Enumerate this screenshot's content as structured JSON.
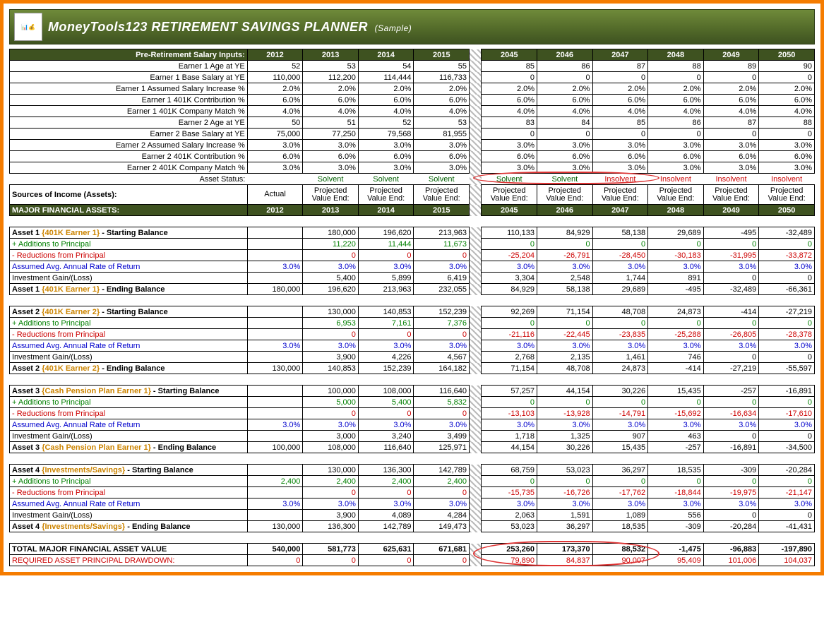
{
  "title_main": "MoneyTools123 RETIREMENT SAVINGS PLANNER",
  "title_sample": "(Sample)",
  "logo_text": "📊💰",
  "years_left": [
    "2012",
    "2013",
    "2014",
    "2015"
  ],
  "years_right": [
    "2045",
    "2046",
    "2047",
    "2048",
    "2049",
    "2050"
  ],
  "section1_header": "Pre-Retirement Salary Inputs:",
  "inputs": [
    {
      "label": "Earner 1 Age at YE",
      "l": [
        "52",
        "53",
        "54",
        "55"
      ],
      "r": [
        "85",
        "86",
        "87",
        "88",
        "89",
        "90"
      ]
    },
    {
      "label": "Earner 1 Base Salary at YE",
      "l": [
        "110,000",
        "112,200",
        "114,444",
        "116,733"
      ],
      "r": [
        "0",
        "0",
        "0",
        "0",
        "0",
        "0"
      ]
    },
    {
      "label": "Earner 1 Assumed Salary Increase %",
      "l": [
        "2.0%",
        "2.0%",
        "2.0%",
        "2.0%"
      ],
      "r": [
        "2.0%",
        "2.0%",
        "2.0%",
        "2.0%",
        "2.0%",
        "2.0%"
      ]
    },
    {
      "label": "Earner 1 401K Contribution %",
      "l": [
        "6.0%",
        "6.0%",
        "6.0%",
        "6.0%"
      ],
      "r": [
        "6.0%",
        "6.0%",
        "6.0%",
        "6.0%",
        "6.0%",
        "6.0%"
      ]
    },
    {
      "label": "Earner 1 401K Company Match %",
      "l": [
        "4.0%",
        "4.0%",
        "4.0%",
        "4.0%"
      ],
      "r": [
        "4.0%",
        "4.0%",
        "4.0%",
        "4.0%",
        "4.0%",
        "4.0%"
      ]
    },
    {
      "label": "Earner 2 Age at YE",
      "l": [
        "50",
        "51",
        "52",
        "53"
      ],
      "r": [
        "83",
        "84",
        "85",
        "86",
        "87",
        "88"
      ]
    },
    {
      "label": "Earner 2 Base Salary at YE",
      "l": [
        "75,000",
        "77,250",
        "79,568",
        "81,955"
      ],
      "r": [
        "0",
        "0",
        "0",
        "0",
        "0",
        "0"
      ]
    },
    {
      "label": "Earner 2 Assumed Salary Increase %",
      "l": [
        "3.0%",
        "3.0%",
        "3.0%",
        "3.0%"
      ],
      "r": [
        "3.0%",
        "3.0%",
        "3.0%",
        "3.0%",
        "3.0%",
        "3.0%"
      ]
    },
    {
      "label": "Earner 2 401K Contribution %",
      "l": [
        "6.0%",
        "6.0%",
        "6.0%",
        "6.0%"
      ],
      "r": [
        "6.0%",
        "6.0%",
        "6.0%",
        "6.0%",
        "6.0%",
        "6.0%"
      ]
    },
    {
      "label": "Earner 2 401K Company Match %",
      "l": [
        "3.0%",
        "3.0%",
        "3.0%",
        "3.0%"
      ],
      "r": [
        "3.0%",
        "3.0%",
        "3.0%",
        "3.0%",
        "3.0%",
        "3.0%"
      ]
    }
  ],
  "asset_status_label": "Asset Status:",
  "status_l": [
    "",
    "Solvent",
    "Solvent",
    "Solvent"
  ],
  "status_r": [
    "Solvent",
    "Solvent",
    "Insolvent",
    "Insolvent",
    "Insolvent",
    "Insolvent"
  ],
  "sources_label": "Sources of Income (Assets):",
  "actual_label": "Actual",
  "proj_label": "Projected Value End:",
  "major_assets_label": "MAJOR FINANCIAL ASSETS:",
  "assets": [
    {
      "name": "{401K Earner 1}",
      "start_label": "Asset 1",
      "end_label": "Asset 1",
      "rows": [
        {
          "t": "start",
          "l": [
            "",
            "180,000",
            "196,620",
            "213,963"
          ],
          "r": [
            "110,133",
            "84,929",
            "58,138",
            "29,689",
            "-495",
            "-32,489"
          ]
        },
        {
          "t": "add",
          "l": [
            "",
            "11,220",
            "11,444",
            "11,673"
          ],
          "r": [
            "0",
            "0",
            "0",
            "0",
            "0",
            "0"
          ]
        },
        {
          "t": "red",
          "l": [
            "",
            "0",
            "0",
            "0"
          ],
          "r": [
            "-25,204",
            "-26,791",
            "-28,450",
            "-30,183",
            "-31,995",
            "-33,872"
          ]
        },
        {
          "t": "ror",
          "l": [
            "3.0%",
            "3.0%",
            "3.0%",
            "3.0%"
          ],
          "r": [
            "3.0%",
            "3.0%",
            "3.0%",
            "3.0%",
            "3.0%",
            "3.0%"
          ]
        },
        {
          "t": "gain",
          "l": [
            "",
            "5,400",
            "5,899",
            "6,419"
          ],
          "r": [
            "3,304",
            "2,548",
            "1,744",
            "891",
            "0",
            "0"
          ]
        },
        {
          "t": "end",
          "l": [
            "180,000",
            "196,620",
            "213,963",
            "232,055"
          ],
          "r": [
            "84,929",
            "58,138",
            "29,689",
            "-495",
            "-32,489",
            "-66,361"
          ]
        }
      ]
    },
    {
      "name": "{401K Earner 2}",
      "start_label": "Asset 2",
      "end_label": "Asset 2",
      "rows": [
        {
          "t": "start",
          "l": [
            "",
            "130,000",
            "140,853",
            "152,239"
          ],
          "r": [
            "92,269",
            "71,154",
            "48,708",
            "24,873",
            "-414",
            "-27,219"
          ]
        },
        {
          "t": "add",
          "l": [
            "",
            "6,953",
            "7,161",
            "7,376"
          ],
          "r": [
            "0",
            "0",
            "0",
            "0",
            "0",
            "0"
          ]
        },
        {
          "t": "red",
          "l": [
            "",
            "0",
            "0",
            "0"
          ],
          "r": [
            "-21,116",
            "-22,445",
            "-23,835",
            "-25,288",
            "-26,805",
            "-28,378"
          ]
        },
        {
          "t": "ror",
          "l": [
            "3.0%",
            "3.0%",
            "3.0%",
            "3.0%"
          ],
          "r": [
            "3.0%",
            "3.0%",
            "3.0%",
            "3.0%",
            "3.0%",
            "3.0%"
          ]
        },
        {
          "t": "gain",
          "l": [
            "",
            "3,900",
            "4,226",
            "4,567"
          ],
          "r": [
            "2,768",
            "2,135",
            "1,461",
            "746",
            "0",
            "0"
          ]
        },
        {
          "t": "end",
          "l": [
            "130,000",
            "140,853",
            "152,239",
            "164,182"
          ],
          "r": [
            "71,154",
            "48,708",
            "24,873",
            "-414",
            "-27,219",
            "-55,597"
          ]
        }
      ]
    },
    {
      "name": "{Cash Pension Plan Earner 1}",
      "start_label": "Asset 3",
      "end_label": "Asset 3",
      "rows": [
        {
          "t": "start",
          "l": [
            "",
            "100,000",
            "108,000",
            "116,640"
          ],
          "r": [
            "57,257",
            "44,154",
            "30,226",
            "15,435",
            "-257",
            "-16,891"
          ]
        },
        {
          "t": "add",
          "l": [
            "",
            "5,000",
            "5,400",
            "5,832"
          ],
          "r": [
            "0",
            "0",
            "0",
            "0",
            "0",
            "0"
          ]
        },
        {
          "t": "red",
          "l": [
            "",
            "0",
            "0",
            "0"
          ],
          "r": [
            "-13,103",
            "-13,928",
            "-14,791",
            "-15,692",
            "-16,634",
            "-17,610"
          ]
        },
        {
          "t": "ror",
          "l": [
            "3.0%",
            "3.0%",
            "3.0%",
            "3.0%"
          ],
          "r": [
            "3.0%",
            "3.0%",
            "3.0%",
            "3.0%",
            "3.0%",
            "3.0%"
          ]
        },
        {
          "t": "gain",
          "l": [
            "",
            "3,000",
            "3,240",
            "3,499"
          ],
          "r": [
            "1,718",
            "1,325",
            "907",
            "463",
            "0",
            "0"
          ]
        },
        {
          "t": "end",
          "l": [
            "100,000",
            "108,000",
            "116,640",
            "125,971"
          ],
          "r": [
            "44,154",
            "30,226",
            "15,435",
            "-257",
            "-16,891",
            "-34,500"
          ]
        }
      ]
    },
    {
      "name": "{Investments/Savings}",
      "start_label": "Asset 4",
      "end_label": "Asset 4",
      "rows": [
        {
          "t": "start",
          "l": [
            "",
            "130,000",
            "136,300",
            "142,789"
          ],
          "r": [
            "68,759",
            "53,023",
            "36,297",
            "18,535",
            "-309",
            "-20,284"
          ]
        },
        {
          "t": "add",
          "l": [
            "2,400",
            "2,400",
            "2,400",
            "2,400"
          ],
          "r": [
            "0",
            "0",
            "0",
            "0",
            "0",
            "0"
          ]
        },
        {
          "t": "red",
          "l": [
            "",
            "0",
            "0",
            "0"
          ],
          "r": [
            "-15,735",
            "-16,726",
            "-17,762",
            "-18,844",
            "-19,975",
            "-21,147"
          ]
        },
        {
          "t": "ror",
          "l": [
            "3.0%",
            "3.0%",
            "3.0%",
            "3.0%"
          ],
          "r": [
            "3.0%",
            "3.0%",
            "3.0%",
            "3.0%",
            "3.0%",
            "3.0%"
          ]
        },
        {
          "t": "gain",
          "l": [
            "",
            "3,900",
            "4,089",
            "4,284"
          ],
          "r": [
            "2,063",
            "1,591",
            "1,089",
            "556",
            "0",
            "0"
          ]
        },
        {
          "t": "end",
          "l": [
            "130,000",
            "136,300",
            "142,789",
            "149,473"
          ],
          "r": [
            "53,023",
            "36,297",
            "18,535",
            "-309",
            "-20,284",
            "-41,431"
          ]
        }
      ]
    }
  ],
  "row_labels": {
    "start": " - Starting Balance",
    "add": "+ Additions to Principal",
    "red": "- Reductions from Principal",
    "ror": "Assumed Avg. Annual Rate of Return",
    "gain": "Investment Gain/(Loss)",
    "end": " - Ending Balance"
  },
  "total_label": "TOTAL MAJOR FINANCIAL ASSET VALUE",
  "total_l": [
    "540,000",
    "581,773",
    "625,631",
    "671,681"
  ],
  "total_r": [
    "253,260",
    "173,370",
    "88,532",
    "-1,475",
    "-96,883",
    "-197,890"
  ],
  "drawdown_label": "REQUIRED ASSET PRINCIPAL DRAWDOWN:",
  "drawdown_l": [
    "0",
    "0",
    "0",
    "0"
  ],
  "drawdown_r": [
    "79,890",
    "84,837",
    "90,007",
    "95,409",
    "101,006",
    "104,037"
  ],
  "colors": {
    "frame": "#f57c00",
    "header_bg": "#3e5220",
    "green": "#008000",
    "red": "#cc0000",
    "blue": "#0000cc",
    "asset": "#cc8400"
  }
}
